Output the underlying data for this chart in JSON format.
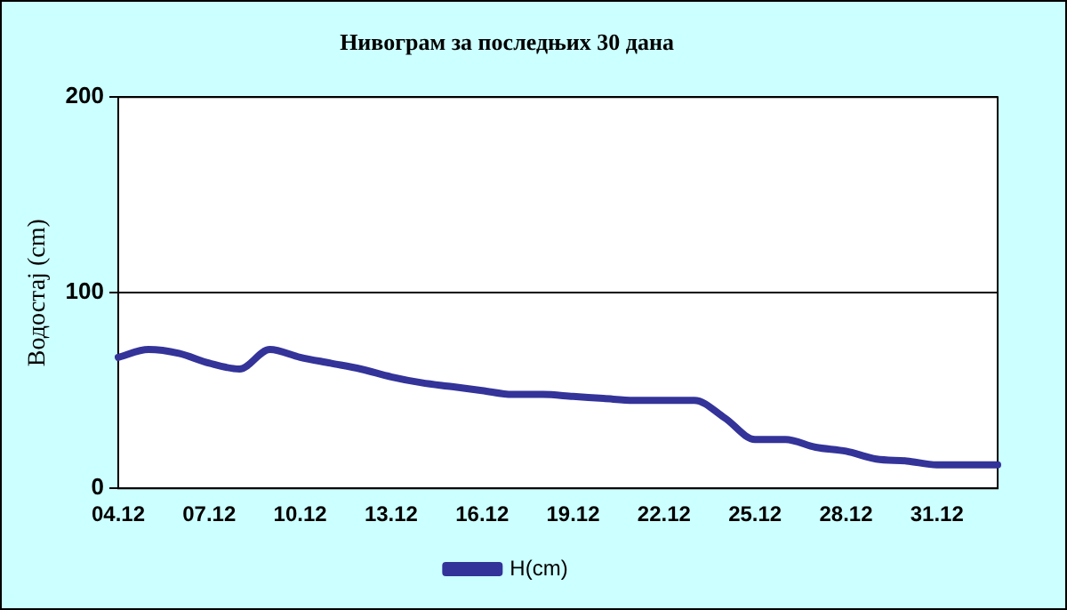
{
  "chart_data": {
    "type": "line",
    "title": "Нивограм за последњих 30 дана",
    "ylabel": "Водостај (cm)",
    "categories": [
      "04.12",
      null,
      null,
      "07.12",
      null,
      null,
      "10.12",
      null,
      null,
      "13.12",
      null,
      null,
      "16.12",
      null,
      null,
      "19.12",
      null,
      null,
      "22.12",
      null,
      null,
      "25.12",
      null,
      null,
      "28.12",
      null,
      null,
      "31.12",
      null,
      null
    ],
    "series": [
      {
        "name": "H(cm)",
        "color": "#333399",
        "values": [
          67,
          71,
          69,
          64,
          61,
          71,
          67,
          64,
          61,
          57,
          54,
          52,
          50,
          48,
          48,
          47,
          46,
          45,
          45,
          45,
          36,
          25,
          25,
          21,
          19,
          15,
          14,
          12,
          12,
          12
        ]
      }
    ],
    "ylim": [
      0,
      200
    ],
    "yticks": [
      0,
      100,
      200
    ],
    "grid": "y",
    "legend": "bottom",
    "marker": "none",
    "line_style": "solid"
  }
}
